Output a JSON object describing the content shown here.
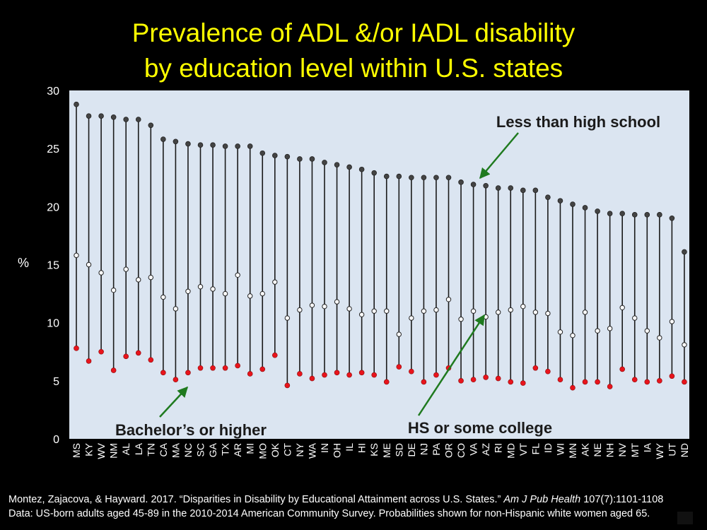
{
  "title": {
    "line1": "Prevalence of ADL &/or IADL disability",
    "line2": "by education level within U.S. states"
  },
  "colors": {
    "background": "#000000",
    "title": "#ffff00",
    "plot_bg": "#dbe5f1",
    "stem": "#1a1a1a",
    "less_than_hs": "#444444",
    "hs_some_college": "#ffffff",
    "bachelors": "#e8141c",
    "arrow": "#1f7a1f"
  },
  "footer": {
    "citation_prefix": "Montez, Zajacova, & Hayward. 2017. “Disparities in Disability by Educational Attainment across U.S. States.”",
    "journal": "Am J Pub Health",
    "citation_suffix": "107(7):1101-1108",
    "data_note": "Data:  US-born adults aged 45-89 in the 2010-2014 American Community Survey. Probabilities shown for non-Hispanic white women aged 65."
  },
  "chart_data": {
    "type": "scatter",
    "subtype": "dot-and-stem by category",
    "ylabel": "%",
    "xlabel": "",
    "ylim": [
      0,
      30
    ],
    "yticks": [
      0,
      5,
      10,
      15,
      20,
      25,
      30
    ],
    "grid": false,
    "categories": [
      "MS",
      "KY",
      "WV",
      "NM",
      "AL",
      "LA",
      "TN",
      "CA",
      "MA",
      "NC",
      "SC",
      "GA",
      "TX",
      "AR",
      "MI",
      "MO",
      "OK",
      "CT",
      "NY",
      "WA",
      "IN",
      "OH",
      "IL",
      "HI",
      "KS",
      "ME",
      "SD",
      "DE",
      "NJ",
      "PA",
      "OR",
      "CO",
      "VA",
      "AZ",
      "RI",
      "MD",
      "VT",
      "FL",
      "ID",
      "WI",
      "MN",
      "AK",
      "NE",
      "NH",
      "NV",
      "MT",
      "IA",
      "WY",
      "UT",
      "ND"
    ],
    "series": [
      {
        "name": "Less than high school",
        "marker": "filled-dark",
        "values": [
          28.8,
          27.8,
          27.8,
          27.7,
          27.5,
          27.5,
          27.0,
          25.8,
          25.6,
          25.4,
          25.3,
          25.3,
          25.2,
          25.2,
          25.2,
          24.6,
          24.4,
          24.3,
          24.1,
          24.1,
          23.8,
          23.6,
          23.4,
          23.2,
          22.9,
          22.6,
          22.6,
          22.5,
          22.5,
          22.5,
          22.5,
          22.1,
          21.9,
          21.8,
          21.6,
          21.6,
          21.4,
          21.4,
          20.8,
          20.5,
          20.2,
          19.9,
          19.6,
          19.4,
          19.4,
          19.3,
          19.3,
          19.3,
          19.0,
          16.1
        ]
      },
      {
        "name": "HS or some college",
        "marker": "open-white",
        "values": [
          15.8,
          15.0,
          14.3,
          12.8,
          14.6,
          13.7,
          13.9,
          12.2,
          11.2,
          12.7,
          13.1,
          12.9,
          12.5,
          14.1,
          12.3,
          12.5,
          13.5,
          10.4,
          11.1,
          11.5,
          11.4,
          11.8,
          11.2,
          10.7,
          11.0,
          11.0,
          9.0,
          10.4,
          11.0,
          11.1,
          12.0,
          10.3,
          11.0,
          10.5,
          10.9,
          11.1,
          11.4,
          10.9,
          10.8,
          9.2,
          8.9,
          10.9,
          9.3,
          9.5,
          11.3,
          10.4,
          9.3,
          8.7,
          10.1,
          8.1
        ]
      },
      {
        "name": "Bachelor’s or higher",
        "marker": "filled-red",
        "values": [
          7.8,
          6.7,
          7.5,
          5.9,
          7.1,
          7.4,
          6.8,
          5.7,
          5.1,
          5.7,
          6.1,
          6.1,
          6.1,
          6.3,
          5.6,
          6.0,
          7.2,
          4.6,
          5.6,
          5.2,
          5.5,
          5.7,
          5.5,
          5.7,
          5.5,
          4.9,
          6.2,
          5.8,
          4.9,
          5.5,
          6.1,
          5.0,
          5.1,
          5.3,
          5.2,
          4.9,
          4.8,
          6.1,
          5.8,
          5.1,
          4.4,
          4.9,
          4.9,
          4.5,
          6.0,
          5.1,
          4.9,
          5.0,
          5.4,
          4.9
        ]
      }
    ],
    "annotations": [
      {
        "text": "Less than high school",
        "points_to": "AZ less than high school"
      },
      {
        "text": "HS or some college",
        "points_to": "AZ HS or some college"
      },
      {
        "text": "Bachelor’s or higher",
        "points_to": "NC bachelor’s or higher"
      }
    ]
  }
}
